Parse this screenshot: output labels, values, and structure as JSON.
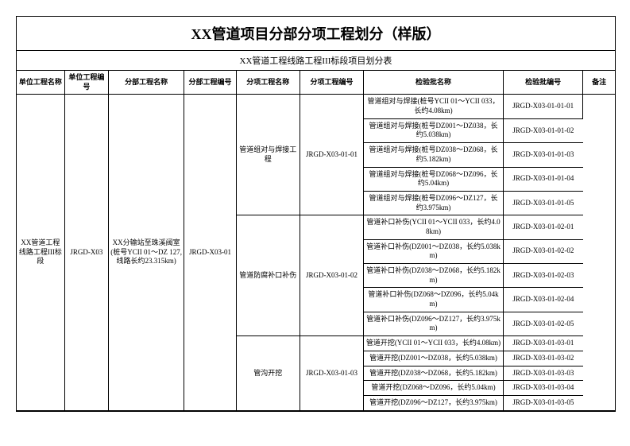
{
  "title": "XX管道项目分部分项工程划分（样版）",
  "subtitle": "XX管道工程线路工程III标段项目划分表",
  "headers": {
    "h1": "单位工程名称",
    "h2": "单位工程编号",
    "h3": "分部工程名称",
    "h4": "分部工程编号",
    "h5": "分项工程名称",
    "h6": "分项工程编号",
    "h7": "检验批名称",
    "h8": "检验批编号",
    "h9": "备注"
  },
  "unit_name": "XX管道工程线路工程III标段",
  "unit_code": "JRGD-X03",
  "div_name": "XX分输站至珠溪阀室(桩号YCII 01～DZ 127,线路长约23.315km)",
  "div_code": "JRGD-X03-01",
  "sub1": {
    "name": "管道组对与焊接工程",
    "code": "JRGD-X03-01-01",
    "rows": [
      {
        "n": "管道组对与焊接(桩号YCII 01～YCII 033，长约4.08km)",
        "c": "JRGD-X03-01-01-01"
      },
      {
        "n": "管道组对与焊接(桩号DZ001～DZ038，长约5.038km)",
        "c": "JRGD-X03-01-01-02"
      },
      {
        "n": "管道组对与焊接(桩号DZ038～DZ068，长约5.182km)",
        "c": "JRGD-X03-01-01-03"
      },
      {
        "n": "管道组对与焊接(桩号DZ068～DZ096，长约5.04km)",
        "c": "JRGD-X03-01-01-04"
      },
      {
        "n": "管道组对与焊接(桩号DZ096～DZ127，长约3.975km)",
        "c": "JRGD-X03-01-01-05"
      }
    ]
  },
  "sub2": {
    "name": "管道防腐补口补伤",
    "code": "JRGD-X03-01-02",
    "rows": [
      {
        "n": "管道补口补伤(YCII 01～YCII 033，长约4.08km)",
        "c": "JRGD-X03-01-02-01"
      },
      {
        "n": "管道补口补伤(DZ001～DZ038，长约5.038km)",
        "c": "JRGD-X03-01-02-02"
      },
      {
        "n": "管道补口补伤(DZ038～DZ068，长约5.182km)",
        "c": "JRGD-X03-01-02-03"
      },
      {
        "n": "管道补口补伤(DZ068～DZ096，长约5.04km)",
        "c": "JRGD-X03-01-02-04"
      },
      {
        "n": "管道补口补伤(DZ096～DZ127，长约3.975km)",
        "c": "JRGD-X03-01-02-05"
      }
    ]
  },
  "sub3": {
    "name": "管沟开挖",
    "code": "JRGD-X03-01-03",
    "rows": [
      {
        "n": "管道开挖(YCII 01～YCII 033，长约4.08km)",
        "c": "JRGD-X03-01-03-01"
      },
      {
        "n": "管道开挖(DZ001～DZ038，长约5.038km)",
        "c": "JRGD-X03-01-03-02"
      },
      {
        "n": "管道开挖(DZ038～DZ068，长约5.182km)",
        "c": "JRGD-X03-01-03-03"
      },
      {
        "n": "管道开挖(DZ068～DZ096，长约5.04km)",
        "c": "JRGD-X03-01-03-04"
      },
      {
        "n": "管道开挖(DZ096～DZ127，长约3.975km)",
        "c": "JRGD-X03-01-03-05"
      }
    ]
  }
}
